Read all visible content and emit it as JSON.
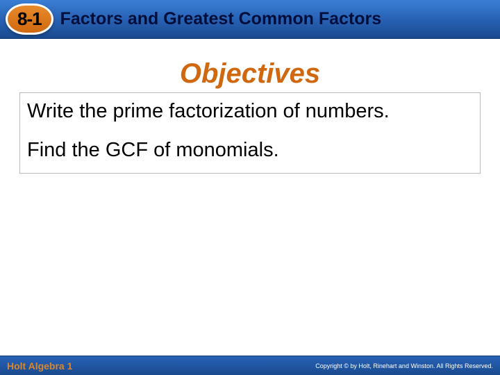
{
  "header": {
    "section_number": "8-1",
    "title": "Factors and Greatest Common Factors"
  },
  "objectives": {
    "heading": "Objectives",
    "items": [
      "Write the prime factorization of numbers.",
      "Find the GCF of monomials."
    ]
  },
  "footer": {
    "left": "Holt Algebra 1",
    "right": "Copyright © by Holt, Rinehart and Winston. All Rights Reserved."
  },
  "colors": {
    "header_gradient_top": "#3a7fd4",
    "header_gradient_bottom": "#1a4a8f",
    "badge_bg": "#d06810",
    "objectives_heading": "#d06810",
    "footer_left_text": "#d88830"
  }
}
